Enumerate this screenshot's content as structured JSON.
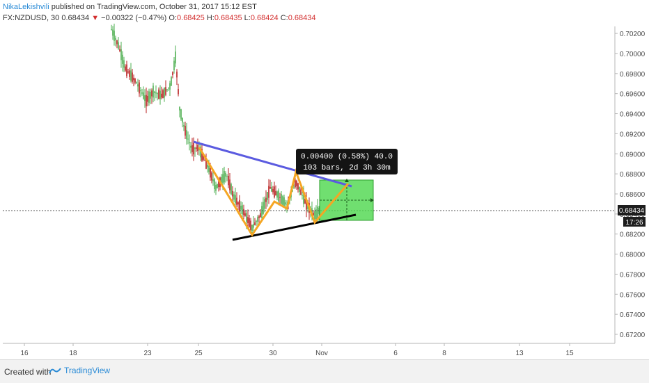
{
  "header": {
    "author": "NikaLekishvili",
    "published": "published on TradingView.com, October 31, 2017 15:12 EST",
    "symbol": "FX:NZDUSD, 30",
    "last": "0.68434",
    "change": "−0.00322 (−0.47%)",
    "o_label": "O:",
    "o_val": "0.68425",
    "h_label": "H:",
    "h_val": "0.68435",
    "l_label": "L:",
    "l_val": "0.68424",
    "c_label": "C:",
    "c_val": "0.68434"
  },
  "colors": {
    "up": "#4caf50",
    "down": "#b71c1c",
    "pattern": "#f5a623",
    "resistance": "#5b5be0",
    "support": "#000000",
    "measure_fill": "#4cd74c",
    "price_label": "#1e1e1e"
  },
  "chart_data": {
    "type": "candlestick",
    "symbol": "FX:NZDUSD",
    "interval": "30",
    "ylim": [
      0.6711,
      0.7027
    ],
    "y_ticks": [
      "0.70200",
      "0.70000",
      "0.69800",
      "0.69600",
      "0.69400",
      "0.69200",
      "0.69000",
      "0.68800",
      "0.68600",
      "0.68400",
      "0.68200",
      "0.68000",
      "0.67800",
      "0.67600",
      "0.67400",
      "0.67200"
    ],
    "x_ticks": [
      "16",
      "18",
      "23",
      "25",
      "30",
      "Nov",
      "6",
      "8",
      "13",
      "15"
    ],
    "current_price": "0.68434",
    "time_to_close": "17:26",
    "series": [
      {
        "x": "Oct 20",
        "y": 0.702
      },
      {
        "x": "Oct 21",
        "y": 0.699
      },
      {
        "x": "Oct 23",
        "y": 0.695
      },
      {
        "x": "Oct 23",
        "y": 0.698
      },
      {
        "x": "Oct 24",
        "y": 0.696
      },
      {
        "x": "Oct 24",
        "y": 0.693
      },
      {
        "x": "Oct 25",
        "y": 0.6905
      },
      {
        "x": "Oct 25",
        "y": 0.6895
      },
      {
        "x": "Oct 26",
        "y": 0.688
      },
      {
        "x": "Oct 26",
        "y": 0.685
      },
      {
        "x": "Oct 27",
        "y": 0.684
      },
      {
        "x": "Oct 27",
        "y": 0.683
      },
      {
        "x": "Oct 30",
        "y": 0.685
      },
      {
        "x": "Oct 30",
        "y": 0.687
      },
      {
        "x": "Oct 31",
        "y": 0.686
      },
      {
        "x": "Oct 31",
        "y": 0.6843
      }
    ],
    "zigzag": [
      {
        "x": "Oct 25",
        "y": 0.6905
      },
      {
        "x": "Oct 27",
        "y": 0.6818
      },
      {
        "x": "Oct 28",
        "y": 0.6851
      },
      {
        "x": "Oct 29",
        "y": 0.683
      },
      {
        "x": "Oct 30",
        "y": 0.6882
      },
      {
        "x": "Oct 31",
        "y": 0.6832
      },
      {
        "x": "Nov 1",
        "y": 0.6872
      }
    ],
    "resistance_line": [
      {
        "x": "Oct 25",
        "y": 0.6912
      },
      {
        "x": "Nov 2",
        "y": 0.6867
      }
    ],
    "support_line": [
      {
        "x": "Oct 27",
        "y": 0.6812
      },
      {
        "x": "Nov 2",
        "y": 0.6839
      }
    ],
    "measure": {
      "line1": "0.00400 (0.58%) 40.0",
      "line2": "103 bars, 2d 3h 30m"
    }
  }
}
